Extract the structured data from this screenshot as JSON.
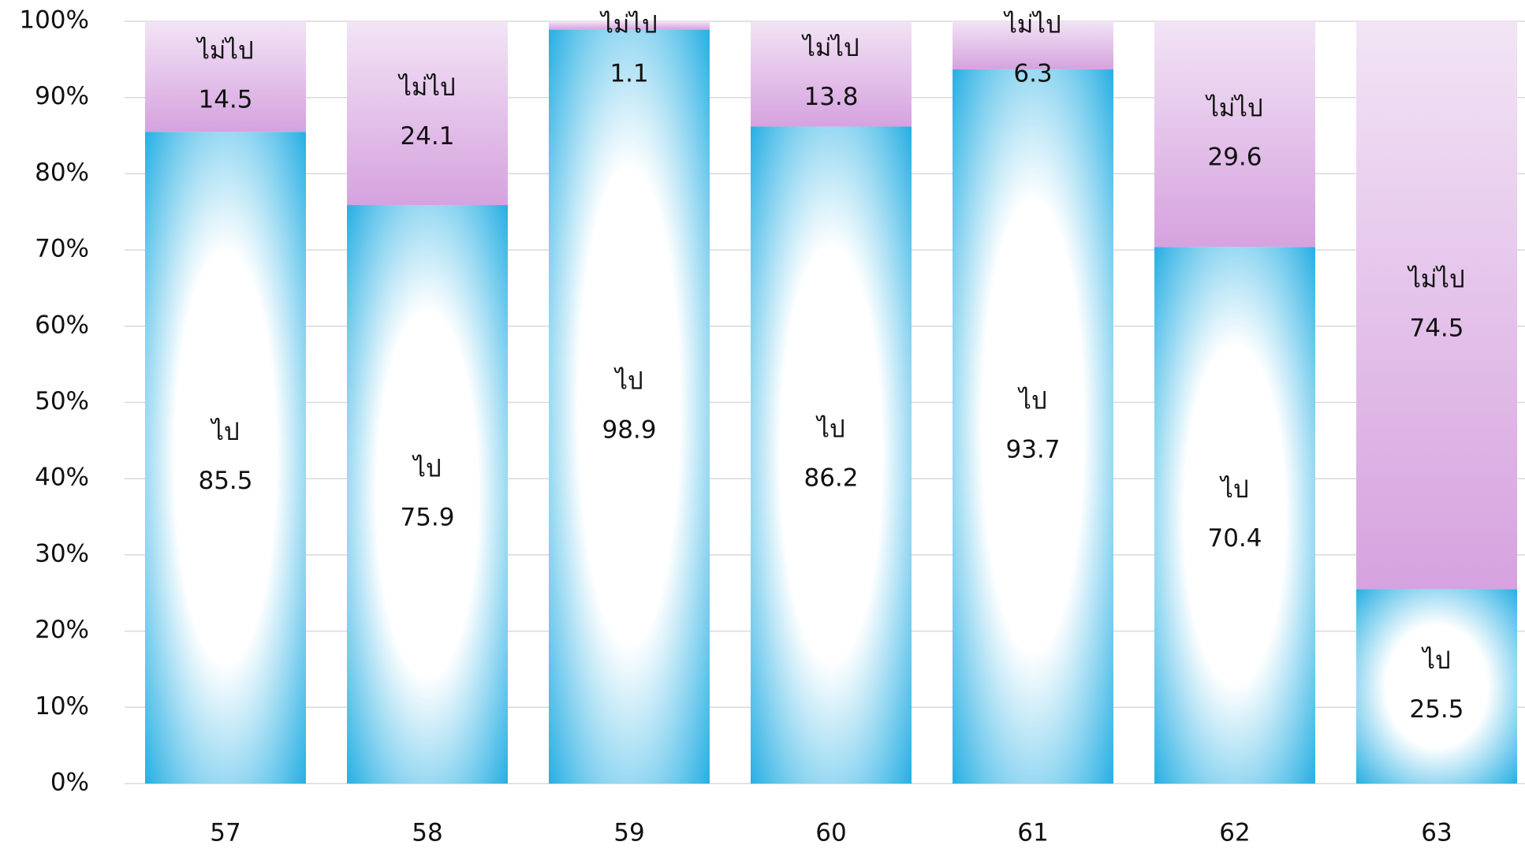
{
  "chart_data": {
    "type": "stacked_bar",
    "categories": [
      "57",
      "58",
      "59",
      "60",
      "61",
      "62",
      "63"
    ],
    "series": [
      {
        "name": "ไป",
        "color": "#2ab0e4",
        "values": [
          85.5,
          75.9,
          98.9,
          86.2,
          93.7,
          70.4,
          25.5
        ]
      },
      {
        "name": "ไม่ไป",
        "color": "#d6a2df",
        "values": [
          14.5,
          24.1,
          1.1,
          13.8,
          6.3,
          29.6,
          74.5
        ]
      }
    ],
    "ylim": [
      0,
      100
    ],
    "yticks": [
      {
        "value": 0,
        "label": "0%"
      },
      {
        "value": 10,
        "label": "10%"
      },
      {
        "value": 20,
        "label": "20%"
      },
      {
        "value": 30,
        "label": "30%"
      },
      {
        "value": 40,
        "label": "40%"
      },
      {
        "value": 50,
        "label": "50%"
      },
      {
        "value": 60,
        "label": "60%"
      },
      {
        "value": 70,
        "label": "70%"
      },
      {
        "value": 80,
        "label": "80%"
      },
      {
        "value": 90,
        "label": "90%"
      },
      {
        "value": 100,
        "label": "100%"
      }
    ],
    "grid": true
  }
}
